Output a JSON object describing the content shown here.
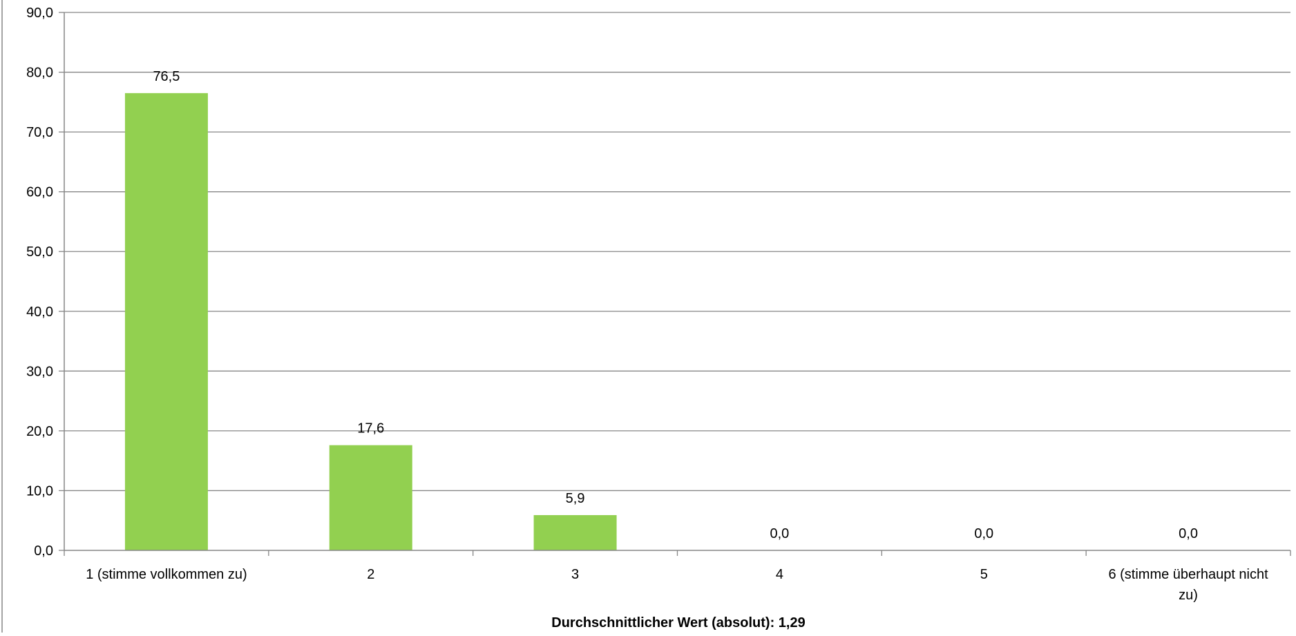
{
  "chart_data": {
    "type": "bar",
    "categories": [
      [
        "1 (stimme vollkommen zu)"
      ],
      [
        "2"
      ],
      [
        "3"
      ],
      [
        "4"
      ],
      [
        "5"
      ],
      [
        "6 (stimme überhaupt nicht",
        "zu)"
      ]
    ],
    "values": [
      76.5,
      17.6,
      5.9,
      0.0,
      0.0,
      0.0
    ],
    "data_labels": [
      "76,5",
      "17,6",
      "5,9",
      "0,0",
      "0,0",
      "0,0"
    ],
    "y_ticks": [
      "0,0",
      "10,0",
      "20,0",
      "30,0",
      "40,0",
      "50,0",
      "60,0",
      "70,0",
      "80,0",
      "90,0"
    ],
    "ylim": [
      0,
      90
    ],
    "xlabel": "Durchschnittlicher Wert (absolut): 1,29",
    "ylabel": "",
    "title": "",
    "grid": true,
    "legend": "none",
    "bar_color": "#92d050",
    "gridline_color": "#868686",
    "axis_color": "#868686"
  }
}
